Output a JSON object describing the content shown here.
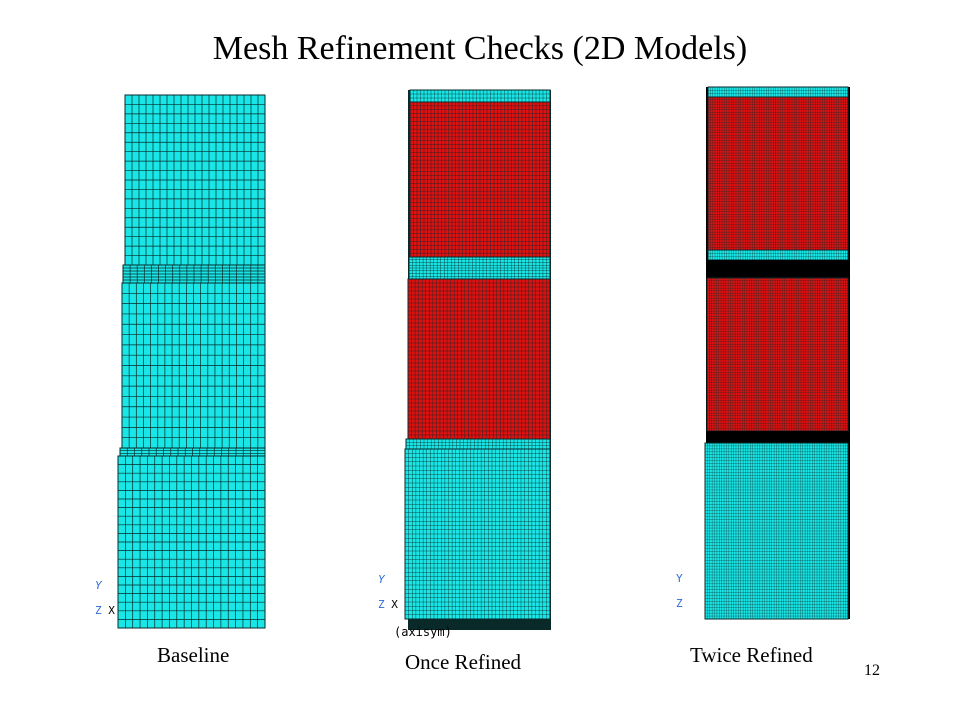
{
  "slide": {
    "title": "Mesh Refinement Checks (2D Models)",
    "page_number": "12"
  },
  "panels": [
    {
      "caption": "Baseline",
      "axis_tag": "",
      "triad": {
        "y": "Y",
        "z": "Z",
        "x": "X"
      }
    },
    {
      "caption": "Once Refined",
      "axis_tag": "(axisym)",
      "triad": {
        "y": "Y",
        "z": "Z",
        "x": "X"
      }
    },
    {
      "caption": "Twice Refined",
      "axis_tag": "",
      "triad": {
        "y": "Y",
        "z": "Z",
        "x": ""
      }
    }
  ],
  "colors": {
    "mesh_cyan": "#19e6e6",
    "mesh_red": "#e01010",
    "grid_line": "#0a2a2a",
    "axis_triad": "#2a6bd8"
  }
}
